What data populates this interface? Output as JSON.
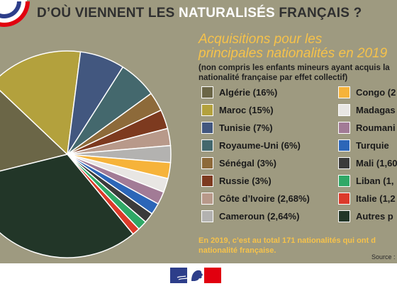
{
  "header": {
    "title_prefix": "D’OÙ VIENNENT LES ",
    "title_highlight": "NATURALISÉS",
    "title_suffix": " FRANÇAIS ?"
  },
  "subtitle_line1": "Acquisitions pour les",
  "subtitle_line2": "principales nationalités en 2019",
  "note_line1": "(non compris les enfants mineurs ayant acquis la",
  "note_line2": "nationalité française par effet collectif)",
  "footer_line1": "En 2019, c’est au total 171 nationalités qui ont d",
  "footer_line2": "nationalité française.",
  "source_label": "Source :",
  "colors": {
    "background": "#9e9a80",
    "accent": "#f6c24a",
    "flag_blue": "#2d3e8a",
    "flag_red": "#e1000f"
  },
  "chart_data": {
    "type": "pie",
    "title": "D’OÙ VIENNENT LES NATURALISÉS FRANÇAIS ?",
    "legend_position": "right",
    "slices": [
      {
        "label": "Algérie (16%)",
        "value": 16,
        "color": "#6b6647"
      },
      {
        "label": "Maroc (15%)",
        "value": 15,
        "color": "#b3a13d"
      },
      {
        "label": "Tunisie (7%)",
        "value": 7,
        "color": "#42577f"
      },
      {
        "label": "Royaume-Uni (6%)",
        "value": 6,
        "color": "#44686d"
      },
      {
        "label": "Sénégal (3%)",
        "value": 3,
        "color": "#8d6a3a"
      },
      {
        "label": "Russie (3%)",
        "value": 3,
        "color": "#7d3a1f"
      },
      {
        "label": "Côte d’Ivoire (2,68%)",
        "value": 2.68,
        "color": "#b8998a"
      },
      {
        "label": "Cameroun (2,64%)",
        "value": 2.64,
        "color": "#b3b2b0"
      },
      {
        "label": "Congo (2",
        "value": 2.5,
        "color": "#f6b33a"
      },
      {
        "label": "Madagas",
        "value": 2.2,
        "color": "#e8e6e3"
      },
      {
        "label": "Roumani",
        "value": 2,
        "color": "#a27b96"
      },
      {
        "label": "Turquie ",
        "value": 1.8,
        "color": "#2c66b8"
      },
      {
        "label": "Mali (1,60",
        "value": 1.6,
        "color": "#3b3b3b"
      },
      {
        "label": "Liban (1,",
        "value": 1.5,
        "color": "#2fa866"
      },
      {
        "label": "Italie (1,2",
        "value": 1.2,
        "color": "#dc3a2a"
      },
      {
        "label": "Autres p",
        "value": 32.18,
        "color": "#223628"
      }
    ]
  }
}
